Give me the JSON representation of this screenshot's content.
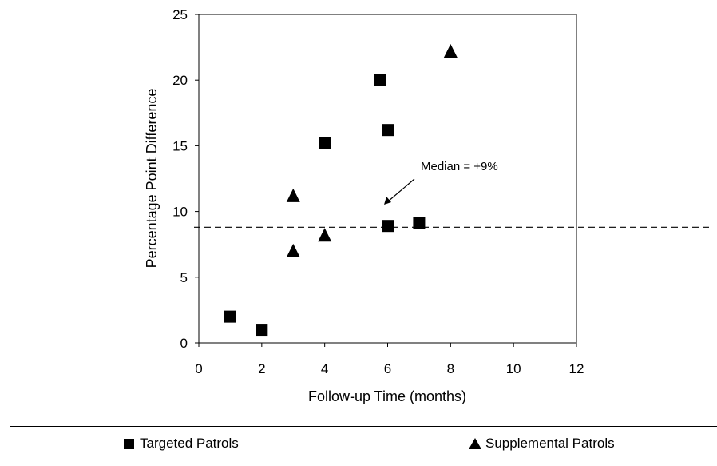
{
  "chart_data": {
    "type": "scatter",
    "title": "",
    "xlabel": "Follow-up Time (months)",
    "ylabel": "Percentage Point Difference",
    "xlim": [
      0,
      12
    ],
    "ylim": [
      0,
      25
    ],
    "xticks": [
      0,
      2,
      4,
      6,
      8,
      10,
      12
    ],
    "yticks": [
      0,
      5,
      10,
      15,
      20,
      25
    ],
    "grid": false,
    "legend_position": "bottom",
    "series": [
      {
        "name": "Targeted Patrols",
        "marker": "square",
        "color": "#000000",
        "points": [
          {
            "x": 1,
            "y": 2
          },
          {
            "x": 2,
            "y": 1
          },
          {
            "x": 4,
            "y": 15.2
          },
          {
            "x": 5.75,
            "y": 20
          },
          {
            "x": 6,
            "y": 16.2
          },
          {
            "x": 6,
            "y": 8.9
          },
          {
            "x": 7,
            "y": 9.1
          }
        ]
      },
      {
        "name": "Supplemental Patrols",
        "marker": "triangle",
        "color": "#000000",
        "points": [
          {
            "x": 3,
            "y": 11.2
          },
          {
            "x": 3,
            "y": 7
          },
          {
            "x": 4,
            "y": 8.2
          },
          {
            "x": 8,
            "y": 22.2
          }
        ]
      }
    ],
    "reference_line": {
      "y": 8.8,
      "style": "dashed",
      "label": "Median = +9%"
    }
  }
}
